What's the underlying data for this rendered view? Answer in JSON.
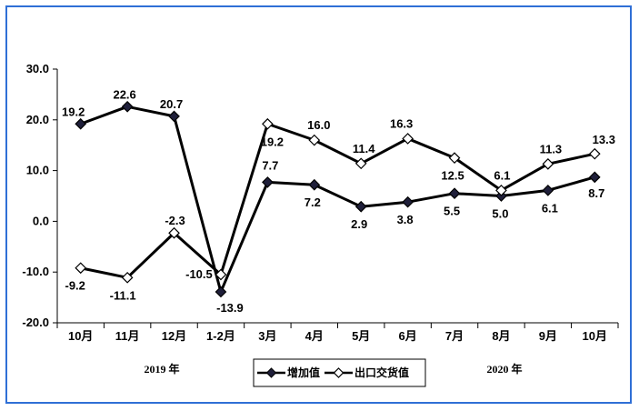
{
  "chart_data": {
    "type": "line",
    "categories": [
      "10月",
      "11月",
      "12月",
      "1-2月",
      "3月",
      "4月",
      "5月",
      "6月",
      "7月",
      "8月",
      "9月",
      "10月"
    ],
    "ylim": [
      -20,
      30
    ],
    "y_ticks": [
      "30.0",
      "20.0",
      "10.0",
      "0.0",
      "-10.0",
      "-20.0"
    ],
    "y_tick_values": [
      30,
      20,
      10,
      0,
      -10,
      -20
    ],
    "year_labels": [
      "2019 年",
      "2020 年"
    ],
    "legend_position": "bottom-center",
    "grid": false,
    "series": [
      {
        "name": "增加值",
        "marker": "filled-diamond",
        "color": "#000000",
        "marker_fill": "#1f1f3a",
        "values": [
          19.2,
          22.6,
          20.7,
          -13.9,
          7.7,
          7.2,
          2.9,
          3.8,
          5.5,
          5.0,
          6.1,
          8.7
        ],
        "labels": [
          "19.2",
          "22.6",
          "20.7",
          "-13.9",
          "7.7",
          "7.2",
          "2.9",
          "3.8",
          "5.5",
          "5.0",
          "6.1",
          "8.7"
        ]
      },
      {
        "name": "出口交货值",
        "marker": "hollow-diamond",
        "color": "#000000",
        "marker_fill": "#ffffff",
        "values": [
          -9.2,
          -11.1,
          -2.3,
          -10.5,
          19.2,
          16.0,
          11.4,
          16.3,
          12.5,
          6.1,
          11.3,
          13.3
        ],
        "labels": [
          "-9.2",
          "-11.1",
          "-2.3",
          "-10.5",
          "19.2",
          "16.0",
          "11.4",
          "16.3",
          "12.5",
          "6.1",
          "11.3",
          "13.3"
        ]
      }
    ]
  },
  "colors": {
    "frame_border": "#2f6fd6",
    "axis": "#000000"
  }
}
